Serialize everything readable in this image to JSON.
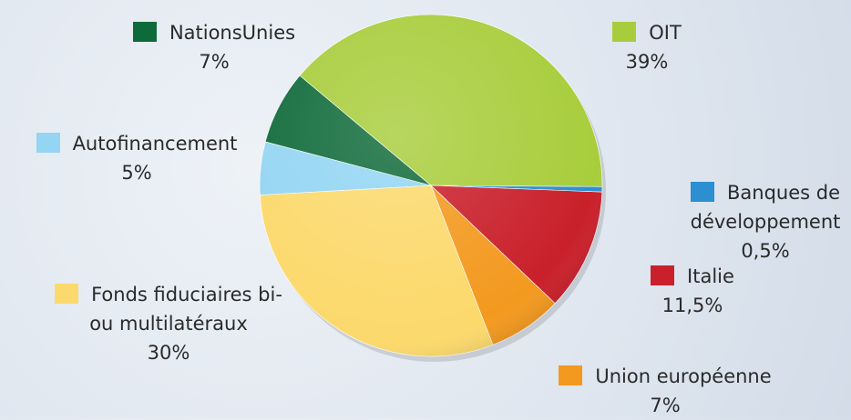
{
  "chart_data": {
    "type": "pie",
    "categories": [
      "OIT",
      "Banques de développement",
      "Italie",
      "Union européenne",
      "Fonds fiduciaires bi- ou multilatéraux",
      "Autofinancement",
      "NationsUnies"
    ],
    "values": [
      39,
      0.5,
      11.5,
      7,
      30,
      5,
      7
    ],
    "value_labels": [
      "39%",
      "0,5%",
      "11,5%",
      "7%",
      "30%",
      "5%",
      "7%"
    ],
    "colors": [
      "#a8cd3c",
      "#2b8fd2",
      "#c9202b",
      "#f3991f",
      "#fcd96c",
      "#93d5f3",
      "#0f6a3a"
    ]
  }
}
